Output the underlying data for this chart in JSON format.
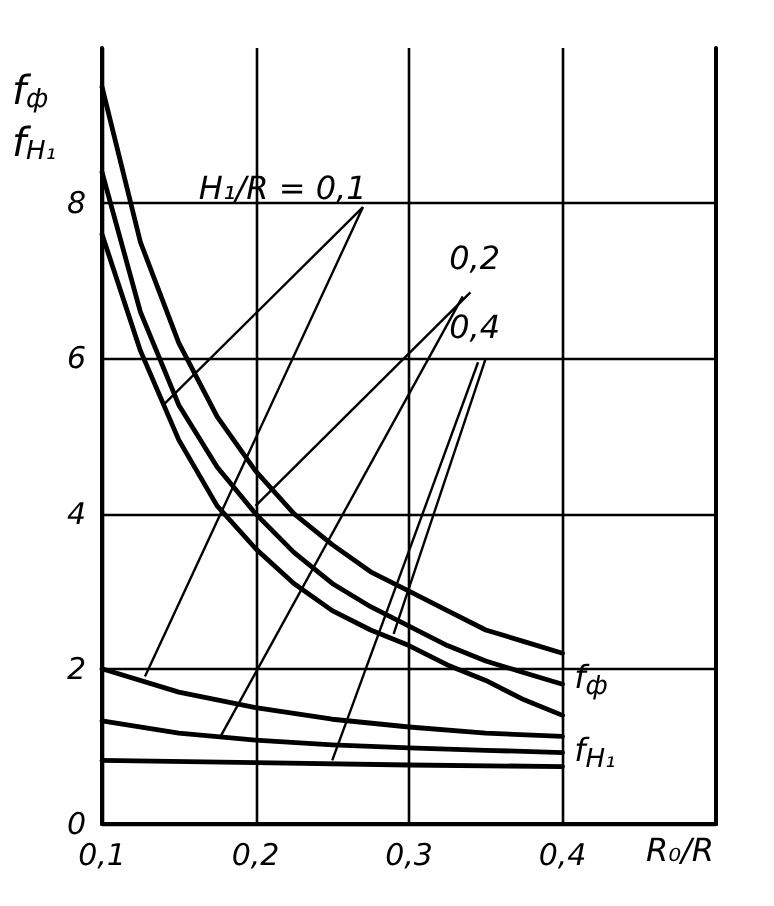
{
  "chart_data": {
    "type": "line",
    "xlabel": "R₀/R",
    "ylabel": "f$_{ф}$\nf$_{H₁}$",
    "xlim": [
      0.1,
      0.5
    ],
    "xticks": [
      {
        "value": 0.1,
        "label": "0,1"
      },
      {
        "value": 0.2,
        "label": "0,2"
      },
      {
        "value": 0.3,
        "label": "0,3"
      },
      {
        "value": 0.4,
        "label": "0,4"
      }
    ],
    "ylim": [
      0,
      10
    ],
    "yticks": [
      0,
      2,
      4,
      6,
      8
    ],
    "grid": true,
    "marker": "none",
    "line_style": "solid",
    "series": [
      {
        "color": "#000000",
        "x": [
          0.1,
          0.125,
          0.15,
          0.175,
          0.2,
          0.225,
          0.25,
          0.275,
          0.3,
          0.325,
          0.35,
          0.375,
          0.4
        ],
        "values": [
          9.5,
          7.5,
          6.2,
          5.25,
          4.55,
          4.0,
          3.6,
          3.25,
          3.0,
          2.75,
          2.5,
          2.35,
          2.2
        ]
      },
      {
        "color": "#000000",
        "x": [
          0.1,
          0.125,
          0.15,
          0.175,
          0.2,
          0.225,
          0.25,
          0.275,
          0.3,
          0.325,
          0.35,
          0.375,
          0.4
        ],
        "values": [
          8.4,
          6.6,
          5.4,
          4.6,
          4.0,
          3.5,
          3.1,
          2.8,
          2.55,
          2.3,
          2.1,
          1.95,
          1.8
        ]
      },
      {
        "color": "#000000",
        "x": [
          0.1,
          0.125,
          0.15,
          0.175,
          0.2,
          0.225,
          0.25,
          0.275,
          0.3,
          0.325,
          0.35,
          0.375,
          0.4
        ],
        "values": [
          7.6,
          6.1,
          4.95,
          4.1,
          3.55,
          3.1,
          2.75,
          2.5,
          2.3,
          2.05,
          1.85,
          1.6,
          1.4
        ]
      },
      {
        "color": "#000000",
        "x": [
          0.1,
          0.15,
          0.2,
          0.25,
          0.3,
          0.35,
          0.4
        ],
        "values": [
          2.0,
          1.7,
          1.5,
          1.35,
          1.25,
          1.17,
          1.13
        ]
      },
      {
        "color": "#000000",
        "x": [
          0.1,
          0.15,
          0.2,
          0.25,
          0.3,
          0.35,
          0.4
        ],
        "values": [
          1.33,
          1.17,
          1.08,
          1.02,
          0.98,
          0.95,
          0.92
        ]
      },
      {
        "color": "#000000",
        "x": [
          0.1,
          0.2,
          0.3,
          0.4
        ],
        "values": [
          0.82,
          0.79,
          0.76,
          0.74
        ]
      }
    ],
    "annotations": [
      "H₁/R = 0,1",
      "0,2",
      "0,4",
      "f$_{ф}$",
      "f$_{H₁}$"
    ]
  }
}
